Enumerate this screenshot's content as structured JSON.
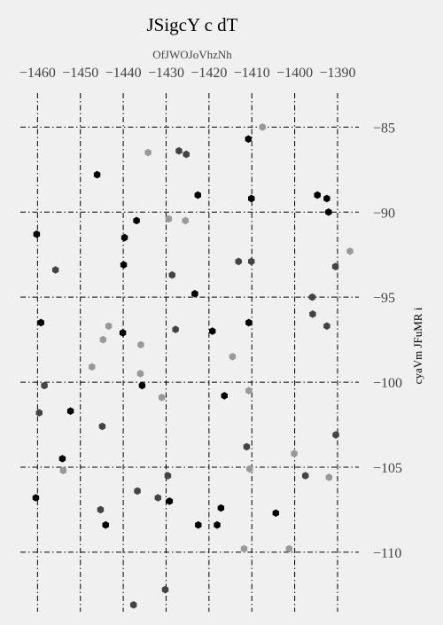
{
  "chart_data": {
    "type": "scatter",
    "title": "JSigcY c dT",
    "xlabel": "OfJWOJoVhzNh",
    "ylabel": "cyaVm JFuMR i",
    "xlim": [
      -1464,
      -1384
    ],
    "ylim": [
      -113.5,
      -83
    ],
    "x_ticks": [
      -1460,
      -1450,
      -1440,
      -1430,
      -1420,
      -1410,
      -1400,
      -1390
    ],
    "x_tick_labels": [
      "−1460",
      "−1450",
      "−1440",
      "−1430",
      "−1420",
      "−1410",
      "−1400",
      "−1390"
    ],
    "y_ticks": [
      -85,
      -90,
      -95,
      -100,
      -105,
      -110
    ],
    "y_tick_labels": [
      "−85",
      "−90",
      "−95",
      "−100",
      "−105",
      "−110"
    ],
    "x_axis_position": "top",
    "y_axis_position": "right",
    "grid": true,
    "colors": [
      "#000000",
      "#444444",
      "#999999"
    ],
    "series": [
      {
        "color": "#000000",
        "points": [
          [
            -1446.1,
            -87.8
          ],
          [
            -1436.9,
            -90.5
          ],
          [
            -1439.7,
            -91.5
          ],
          [
            -1439.9,
            -93.1
          ],
          [
            -1460.2,
            -91.3
          ],
          [
            -1459.2,
            -96.5
          ],
          [
            -1440.1,
            -97.1
          ],
          [
            -1435.6,
            -100.2
          ],
          [
            -1452.3,
            -101.7
          ],
          [
            -1454.2,
            -104.5
          ],
          [
            -1460.4,
            -106.8
          ],
          [
            -1444.1,
            -108.4
          ],
          [
            -1429.2,
            -107
          ],
          [
            -1422.5,
            -108.4
          ],
          [
            -1418.1,
            -108.4
          ],
          [
            -1417.2,
            -107.4
          ],
          [
            -1423.3,
            -94.8
          ],
          [
            -1419.2,
            -97
          ],
          [
            -1416.4,
            -100.8
          ],
          [
            -1410.7,
            -96.5
          ],
          [
            -1410.1,
            -89.2
          ],
          [
            -1422.6,
            -89
          ],
          [
            -1404.4,
            -107.7
          ],
          [
            -1394.7,
            -89
          ],
          [
            -1392.5,
            -89.2
          ],
          [
            -1392.1,
            -90
          ],
          [
            -1410.8,
            -85.7
          ]
        ]
      },
      {
        "color": "#444444",
        "points": [
          [
            -1455.8,
            -93.4
          ],
          [
            -1458.4,
            -100.2
          ],
          [
            -1459.6,
            -101.8
          ],
          [
            -1444.9,
            -102.6
          ],
          [
            -1436.7,
            -106.4
          ],
          [
            -1445.3,
            -107.5
          ],
          [
            -1437.6,
            -113.1
          ],
          [
            -1431.9,
            -106.8
          ],
          [
            -1428.6,
            -93.7
          ],
          [
            -1427.8,
            -96.9
          ],
          [
            -1427,
            -86.4
          ],
          [
            -1425.3,
            -86.6
          ],
          [
            -1429.6,
            -105.5
          ],
          [
            -1413.1,
            -92.9
          ],
          [
            -1410.1,
            -92.9
          ],
          [
            -1411.2,
            -103.8
          ],
          [
            -1395.9,
            -95
          ],
          [
            -1395.8,
            -96
          ],
          [
            -1392.5,
            -96.7
          ],
          [
            -1390.5,
            -93.2
          ],
          [
            -1390.4,
            -103.1
          ],
          [
            -1397.5,
            -105.5
          ],
          [
            -1430.2,
            -112.2
          ]
        ]
      },
      {
        "color": "#999999",
        "points": [
          [
            -1447.3,
            -99.1
          ],
          [
            -1444.7,
            -97.5
          ],
          [
            -1443.4,
            -96.7
          ],
          [
            -1435.9,
            -97.8
          ],
          [
            -1436,
            -99.5
          ],
          [
            -1434.2,
            -86.5
          ],
          [
            -1431,
            -100.9
          ],
          [
            -1429.4,
            -90.4
          ],
          [
            -1425.5,
            -90.5
          ],
          [
            -1414.5,
            -98.5
          ],
          [
            -1410.7,
            -100.5
          ],
          [
            -1410.5,
            -105.1
          ],
          [
            -1411.8,
            -109.8
          ],
          [
            -1407.5,
            -85
          ],
          [
            -1400.1,
            -104.2
          ],
          [
            -1401.3,
            -109.8
          ],
          [
            -1392,
            -105.6
          ],
          [
            -1387.1,
            -92.3
          ],
          [
            -1454,
            -105.2
          ]
        ]
      }
    ]
  }
}
